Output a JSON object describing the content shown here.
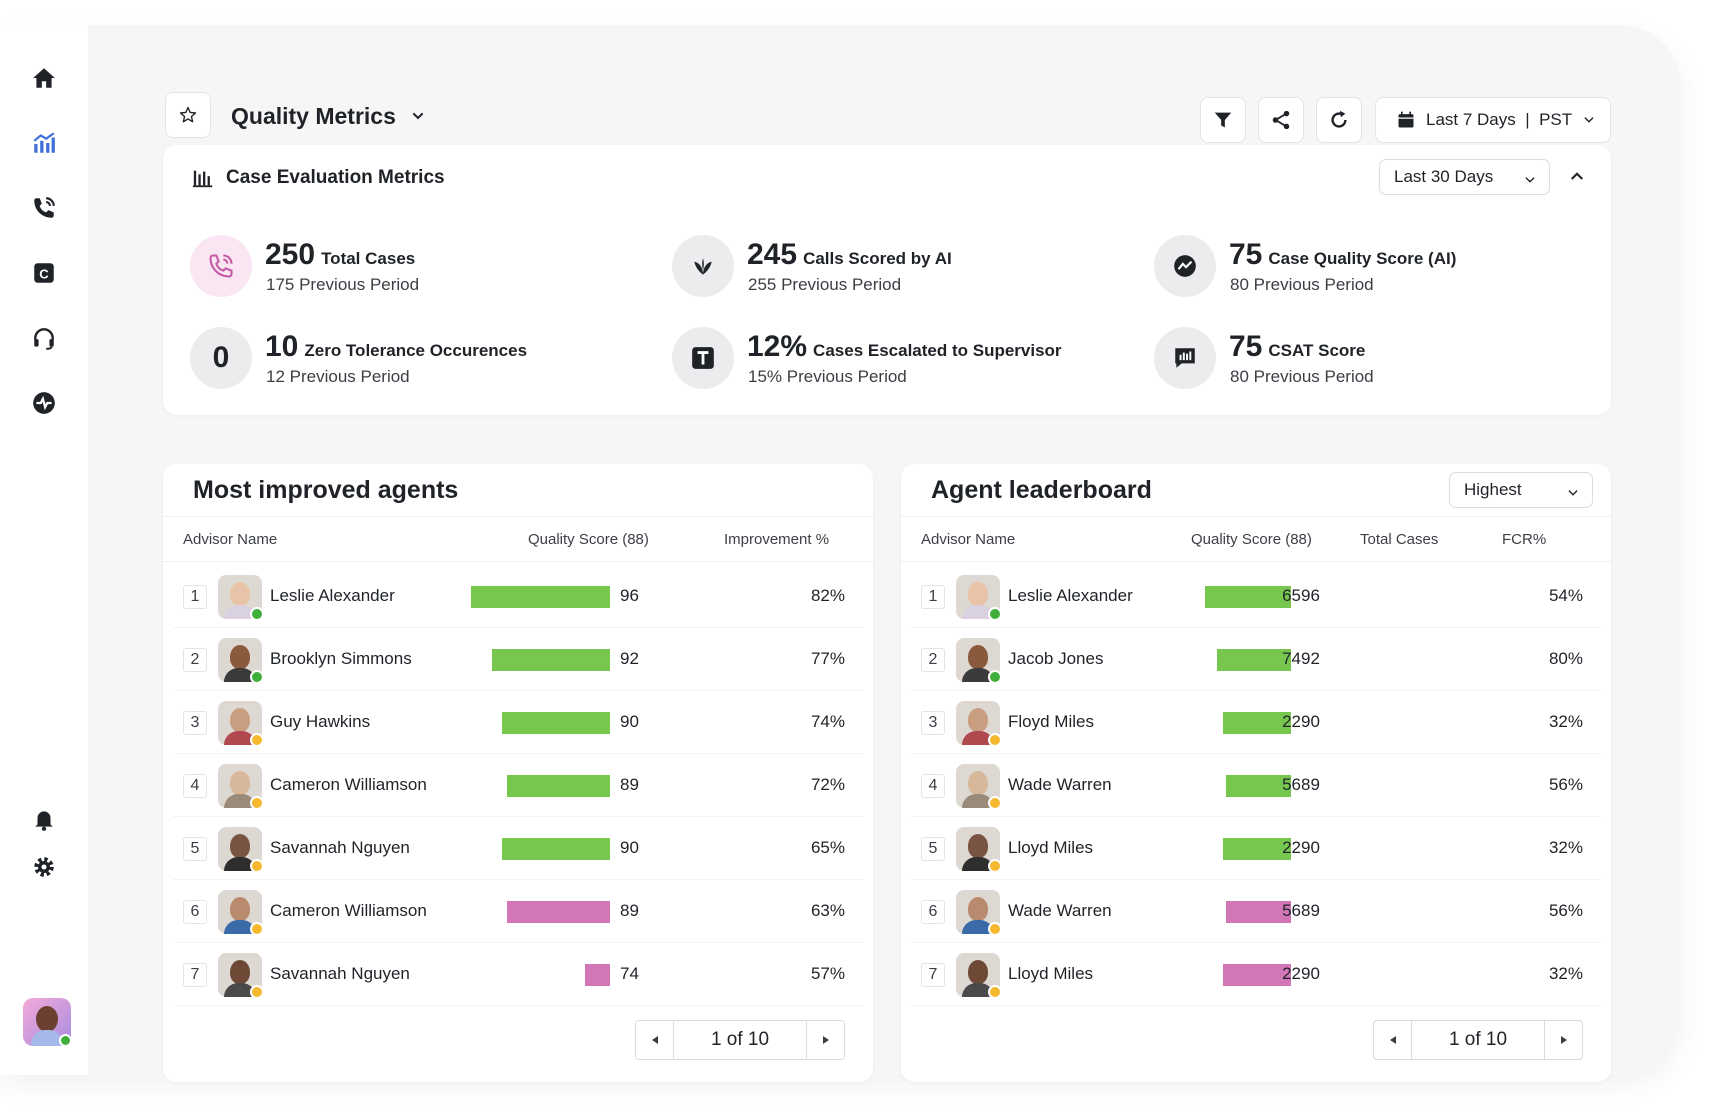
{
  "header": {
    "title": "Quality Metrics",
    "date_range": "Last 7 Days  |  PST"
  },
  "case_evaluation": {
    "title": "Case Evaluation Metrics",
    "range": "Last 30 Days",
    "metrics": [
      {
        "value": "250",
        "label": "Total Cases",
        "previous": "175 Previous Period",
        "icon": "phone-call-icon"
      },
      {
        "value": "245",
        "label": "Calls Scored by AI",
        "previous": "255 Previous Period",
        "icon": "sparkle-leaf-icon"
      },
      {
        "value": "75",
        "label": "Case Quality Score (AI)",
        "previous": "80 Previous Period",
        "icon": "trend-chart-icon"
      },
      {
        "value": "10",
        "label": "Zero Tolerance Occurences",
        "previous": "12 Previous Period",
        "icon": "zero-icon",
        "icon_glyph": "0"
      },
      {
        "value": "12%",
        "label": "Cases Escalated to Supervisor",
        "previous": "15% Previous Period",
        "icon": "t-square-icon"
      },
      {
        "value": "75",
        "label": "CSAT Score",
        "previous": "80 Previous Period",
        "icon": "chat-bars-icon"
      }
    ]
  },
  "most_improved": {
    "title": "Most improved agents",
    "columns": [
      "Advisor Name",
      "Quality Score (88)",
      "Improvement %"
    ],
    "rows": [
      {
        "rank": "1",
        "name": "Leslie Alexander",
        "score": "96",
        "improvement": "82%",
        "status": "online",
        "bar_color": "green"
      },
      {
        "rank": "2",
        "name": "Brooklyn Simmons",
        "score": "92",
        "improvement": "77%",
        "status": "online",
        "bar_color": "green"
      },
      {
        "rank": "3",
        "name": "Guy Hawkins",
        "score": "90",
        "improvement": "74%",
        "status": "away",
        "bar_color": "green"
      },
      {
        "rank": "4",
        "name": "Cameron Williamson",
        "score": "89",
        "improvement": "72%",
        "status": "away",
        "bar_color": "green"
      },
      {
        "rank": "5",
        "name": "Savannah Nguyen",
        "score": "90",
        "improvement": "65%",
        "status": "away",
        "bar_color": "green"
      },
      {
        "rank": "6",
        "name": "Cameron Williamson",
        "score": "89",
        "improvement": "63%",
        "status": "away",
        "bar_color": "pink"
      },
      {
        "rank": "7",
        "name": "Savannah Nguyen",
        "score": "74",
        "improvement": "57%",
        "status": "away",
        "bar_color": "pink"
      }
    ],
    "pagination": "1 of 10"
  },
  "leaderboard": {
    "title": "Agent leaderboard",
    "sort": "Highest",
    "columns": [
      "Advisor Name",
      "Quality Score (88)",
      "Total Cases",
      "FCR%"
    ],
    "rows": [
      {
        "rank": "1",
        "name": "Leslie Alexander",
        "score": "96",
        "cases": "65",
        "fcr": "54%",
        "status": "online",
        "bar_color": "green"
      },
      {
        "rank": "2",
        "name": "Jacob Jones",
        "score": "92",
        "cases": "74",
        "fcr": "80%",
        "status": "online",
        "bar_color": "green"
      },
      {
        "rank": "3",
        "name": "Floyd Miles",
        "score": "90",
        "cases": "22",
        "fcr": "32%",
        "status": "away",
        "bar_color": "green"
      },
      {
        "rank": "4",
        "name": "Wade Warren",
        "score": "89",
        "cases": "56",
        "fcr": "56%",
        "status": "away",
        "bar_color": "green"
      },
      {
        "rank": "5",
        "name": "Lloyd Miles",
        "score": "90",
        "cases": "22",
        "fcr": "32%",
        "status": "away",
        "bar_color": "green"
      },
      {
        "rank": "6",
        "name": "Wade Warren",
        "score": "89",
        "cases": "56",
        "fcr": "56%",
        "status": "away",
        "bar_color": "pink"
      },
      {
        "rank": "7",
        "name": "Lloyd Miles",
        "score": "90",
        "cases": "22",
        "fcr": "32%",
        "status": "away",
        "bar_color": "pink"
      }
    ],
    "pagination": "1 of 10"
  },
  "colors": {
    "green_bar": "#77c74f",
    "pink_bar": "#d276b8",
    "online": "#3fae3a",
    "away": "#f5b82e",
    "accent": "#3f6fd8"
  }
}
